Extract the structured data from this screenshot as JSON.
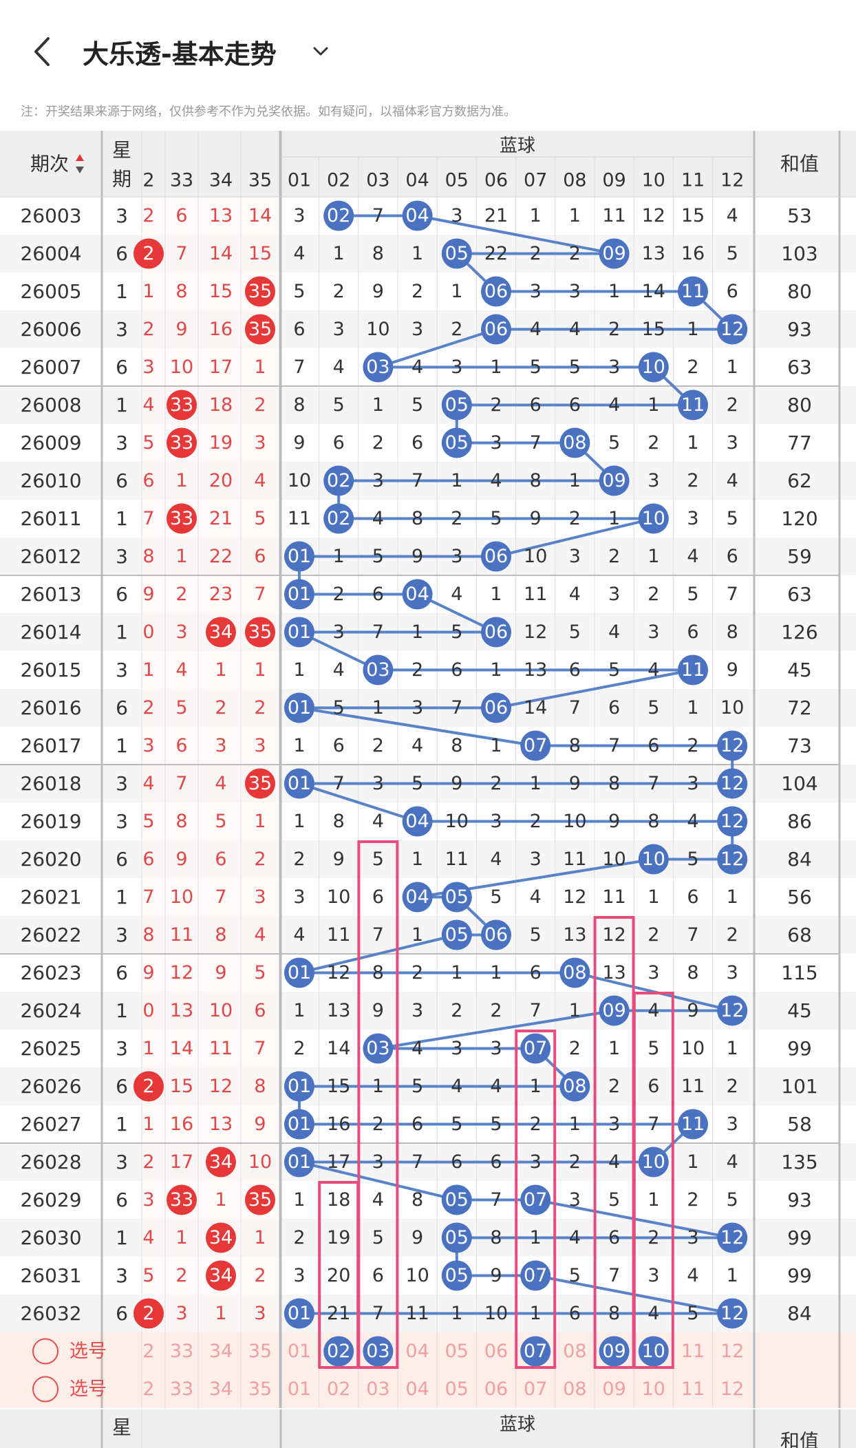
{
  "header": {
    "title": "大乐透-基本走势",
    "note": "注：开奖结果来源于网络，仅供参考不作为兑奖依据。如有疑问，以福体彩官方数据为准。"
  },
  "table": {
    "issue_header": "期次",
    "week_header_top": "星",
    "week_header_bottom": "期",
    "blue_header": "蓝球",
    "sum_header": "和值",
    "front_cols": [
      "2",
      "33",
      "34",
      "35"
    ],
    "blue_cols": [
      "01",
      "02",
      "03",
      "04",
      "05",
      "06",
      "07",
      "08",
      "09",
      "10",
      "11",
      "12"
    ],
    "rows": [
      {
        "issue": "26003",
        "week": "3",
        "front": [
          "2",
          "6",
          "13",
          "14"
        ],
        "blue": [
          "3",
          "02",
          "7",
          "04",
          "3",
          "21",
          "1",
          "1",
          "11",
          "12",
          "15",
          "4"
        ],
        "sum": "53"
      },
      {
        "issue": "26004",
        "week": "6",
        "front": [
          "2",
          "7",
          "14",
          "15"
        ],
        "blue": [
          "4",
          "1",
          "8",
          "1",
          "05",
          "22",
          "2",
          "2",
          "09",
          "13",
          "16",
          "5"
        ],
        "sum": "103"
      },
      {
        "issue": "26005",
        "week": "1",
        "front": [
          "1",
          "8",
          "15",
          "35"
        ],
        "blue": [
          "5",
          "2",
          "9",
          "2",
          "1",
          "06",
          "3",
          "3",
          "1",
          "14",
          "11",
          "6"
        ],
        "sum": "80"
      },
      {
        "issue": "26006",
        "week": "3",
        "front": [
          "2",
          "9",
          "16",
          "35"
        ],
        "blue": [
          "6",
          "3",
          "10",
          "3",
          "2",
          "06",
          "4",
          "4",
          "2",
          "15",
          "1",
          "12"
        ],
        "sum": "93"
      },
      {
        "issue": "26007",
        "week": "6",
        "front": [
          "3",
          "10",
          "17",
          "1"
        ],
        "blue": [
          "7",
          "4",
          "03",
          "4",
          "3",
          "1",
          "5",
          "5",
          "3",
          "10",
          "2",
          "1"
        ],
        "sum": "63"
      },
      {
        "issue": "26008",
        "week": "1",
        "front": [
          "4",
          "33",
          "18",
          "2"
        ],
        "blue": [
          "8",
          "5",
          "1",
          "5",
          "05",
          "2",
          "6",
          "6",
          "4",
          "1",
          "11",
          "2"
        ],
        "sum": "80"
      },
      {
        "issue": "26009",
        "week": "3",
        "front": [
          "5",
          "33",
          "19",
          "3"
        ],
        "blue": [
          "9",
          "6",
          "2",
          "6",
          "05",
          "3",
          "7",
          "08",
          "5",
          "2",
          "1",
          "3"
        ],
        "sum": "77"
      },
      {
        "issue": "26010",
        "week": "6",
        "front": [
          "6",
          "1",
          "20",
          "4"
        ],
        "blue": [
          "10",
          "02",
          "3",
          "7",
          "1",
          "4",
          "8",
          "1",
          "09",
          "3",
          "2",
          "4"
        ],
        "sum": "62"
      },
      {
        "issue": "26011",
        "week": "1",
        "front": [
          "7",
          "33",
          "21",
          "5"
        ],
        "blue": [
          "11",
          "02",
          "4",
          "8",
          "2",
          "5",
          "9",
          "2",
          "1",
          "10",
          "3",
          "5"
        ],
        "sum": "120"
      },
      {
        "issue": "26012",
        "week": "3",
        "front": [
          "8",
          "1",
          "22",
          "6"
        ],
        "blue": [
          "01",
          "1",
          "5",
          "9",
          "3",
          "06",
          "10",
          "3",
          "2",
          "1",
          "4",
          "6"
        ],
        "sum": "59"
      },
      {
        "issue": "26013",
        "week": "6",
        "front": [
          "9",
          "2",
          "23",
          "7"
        ],
        "blue": [
          "01",
          "2",
          "6",
          "04",
          "4",
          "1",
          "11",
          "4",
          "3",
          "2",
          "5",
          "7"
        ],
        "sum": "63"
      },
      {
        "issue": "26014",
        "week": "1",
        "front": [
          "0",
          "3",
          "34",
          "35"
        ],
        "blue": [
          "01",
          "3",
          "7",
          "1",
          "5",
          "06",
          "12",
          "5",
          "4",
          "3",
          "6",
          "8"
        ],
        "sum": "126"
      },
      {
        "issue": "26015",
        "week": "3",
        "front": [
          "1",
          "4",
          "1",
          "1"
        ],
        "blue": [
          "1",
          "4",
          "03",
          "2",
          "6",
          "1",
          "13",
          "6",
          "5",
          "4",
          "11",
          "9"
        ],
        "sum": "45"
      },
      {
        "issue": "26016",
        "week": "6",
        "front": [
          "2",
          "5",
          "2",
          "2"
        ],
        "blue": [
          "01",
          "5",
          "1",
          "3",
          "7",
          "06",
          "14",
          "7",
          "6",
          "5",
          "1",
          "10"
        ],
        "sum": "72"
      },
      {
        "issue": "26017",
        "week": "1",
        "front": [
          "3",
          "6",
          "3",
          "3"
        ],
        "blue": [
          "1",
          "6",
          "2",
          "4",
          "8",
          "1",
          "07",
          "8",
          "7",
          "6",
          "2",
          "12"
        ],
        "sum": "73"
      },
      {
        "issue": "26018",
        "week": "3",
        "front": [
          "4",
          "7",
          "4",
          "35"
        ],
        "blue": [
          "01",
          "7",
          "3",
          "5",
          "9",
          "2",
          "1",
          "9",
          "8",
          "7",
          "3",
          "12"
        ],
        "sum": "104"
      },
      {
        "issue": "26019",
        "week": "3",
        "front": [
          "5",
          "8",
          "5",
          "1"
        ],
        "blue": [
          "1",
          "8",
          "4",
          "04",
          "10",
          "3",
          "2",
          "10",
          "9",
          "8",
          "4",
          "12"
        ],
        "sum": "86"
      },
      {
        "issue": "26020",
        "week": "6",
        "front": [
          "6",
          "9",
          "6",
          "2"
        ],
        "blue": [
          "2",
          "9",
          "5",
          "1",
          "11",
          "4",
          "3",
          "11",
          "10",
          "10",
          "5",
          "12"
        ],
        "sum": "84"
      },
      {
        "issue": "26021",
        "week": "1",
        "front": [
          "7",
          "10",
          "7",
          "3"
        ],
        "blue": [
          "3",
          "10",
          "6",
          "04",
          "05",
          "5",
          "4",
          "12",
          "11",
          "1",
          "6",
          "1"
        ],
        "sum": "56"
      },
      {
        "issue": "26022",
        "week": "3",
        "front": [
          "8",
          "11",
          "8",
          "4"
        ],
        "blue": [
          "4",
          "11",
          "7",
          "1",
          "05",
          "06",
          "5",
          "13",
          "12",
          "2",
          "7",
          "2"
        ],
        "sum": "68"
      },
      {
        "issue": "26023",
        "week": "6",
        "front": [
          "9",
          "12",
          "9",
          "5"
        ],
        "blue": [
          "01",
          "12",
          "8",
          "2",
          "1",
          "1",
          "6",
          "08",
          "13",
          "3",
          "8",
          "3"
        ],
        "sum": "115"
      },
      {
        "issue": "26024",
        "week": "1",
        "front": [
          "0",
          "13",
          "10",
          "6"
        ],
        "blue": [
          "1",
          "13",
          "9",
          "3",
          "2",
          "2",
          "7",
          "1",
          "09",
          "4",
          "9",
          "12"
        ],
        "sum": "45"
      },
      {
        "issue": "26025",
        "week": "3",
        "front": [
          "1",
          "14",
          "11",
          "7"
        ],
        "blue": [
          "2",
          "14",
          "03",
          "4",
          "3",
          "3",
          "07",
          "2",
          "1",
          "5",
          "10",
          "1"
        ],
        "sum": "99"
      },
      {
        "issue": "26026",
        "week": "6",
        "front": [
          "2",
          "15",
          "12",
          "8"
        ],
        "blue": [
          "01",
          "15",
          "1",
          "5",
          "4",
          "4",
          "1",
          "08",
          "2",
          "6",
          "11",
          "2"
        ],
        "sum": "101"
      },
      {
        "issue": "26027",
        "week": "1",
        "front": [
          "1",
          "16",
          "13",
          "9"
        ],
        "blue": [
          "01",
          "16",
          "2",
          "6",
          "5",
          "5",
          "2",
          "1",
          "3",
          "7",
          "11",
          "3"
        ],
        "sum": "58"
      },
      {
        "issue": "26028",
        "week": "3",
        "front": [
          "2",
          "17",
          "34",
          "10"
        ],
        "blue": [
          "01",
          "17",
          "3",
          "7",
          "6",
          "6",
          "3",
          "2",
          "4",
          "10",
          "1",
          "4"
        ],
        "sum": "135"
      },
      {
        "issue": "26029",
        "week": "6",
        "front": [
          "3",
          "33",
          "1",
          "35"
        ],
        "blue": [
          "1",
          "18",
          "4",
          "8",
          "05",
          "7",
          "07",
          "3",
          "5",
          "1",
          "2",
          "5"
        ],
        "sum": "93"
      },
      {
        "issue": "26030",
        "week": "1",
        "front": [
          "4",
          "1",
          "34",
          "1"
        ],
        "blue": [
          "2",
          "19",
          "5",
          "9",
          "05",
          "8",
          "1",
          "4",
          "6",
          "2",
          "3",
          "12"
        ],
        "sum": "99"
      },
      {
        "issue": "26031",
        "week": "3",
        "front": [
          "5",
          "2",
          "34",
          "2"
        ],
        "blue": [
          "3",
          "20",
          "6",
          "10",
          "05",
          "9",
          "07",
          "5",
          "7",
          "3",
          "4",
          "1"
        ],
        "sum": "99"
      },
      {
        "issue": "26032",
        "week": "6",
        "front": [
          "2",
          "3",
          "1",
          "3"
        ],
        "blue": [
          "01",
          "21",
          "7",
          "11",
          "1",
          "10",
          "1",
          "6",
          "8",
          "4",
          "5",
          "12"
        ],
        "sum": "84"
      }
    ],
    "front_hits": [
      [],
      [
        0
      ],
      [
        3
      ],
      [
        3
      ],
      [],
      [
        1
      ],
      [
        1
      ],
      [],
      [
        1
      ],
      [],
      [],
      [
        2,
        3
      ],
      [],
      [],
      [],
      [
        3
      ],
      [],
      [],
      [],
      [],
      [],
      [],
      [],
      [
        0
      ],
      [],
      [
        2
      ],
      [
        1,
        3
      ],
      [
        2
      ],
      [
        2
      ],
      [
        0
      ]
    ],
    "blue_hits": [
      [
        1,
        3
      ],
      [
        4,
        8
      ],
      [
        5,
        10
      ],
      [
        5,
        11
      ],
      [
        2,
        9
      ],
      [
        4,
        10
      ],
      [
        4,
        7
      ],
      [
        1,
        8
      ],
      [
        1,
        9
      ],
      [
        0,
        5
      ],
      [
        0,
        3
      ],
      [
        0,
        5
      ],
      [
        2,
        10
      ],
      [
        0,
        5
      ],
      [
        6,
        11
      ],
      [
        0,
        11
      ],
      [
        3,
        11
      ],
      [
        9,
        11
      ],
      [
        3,
        4
      ],
      [
        4,
        5
      ],
      [
        0,
        7
      ],
      [
        8,
        11
      ],
      [
        2,
        6
      ],
      [
        0,
        7
      ],
      [
        0,
        10
      ],
      [
        0,
        9
      ],
      [
        4,
        6
      ],
      [
        4,
        11
      ],
      [
        4,
        6
      ],
      [
        0,
        11
      ]
    ],
    "select_label": "选号",
    "select_front": [
      "2",
      "33",
      "34",
      "35"
    ],
    "select_blue": [
      "01",
      "02",
      "03",
      "04",
      "05",
      "06",
      "07",
      "08",
      "09",
      "10",
      "11",
      "12"
    ],
    "select_picked": [
      1,
      2,
      6,
      8,
      9
    ],
    "highlight_cols": [
      1,
      2,
      6,
      8,
      9
    ]
  },
  "colors": {
    "red_ball": "#E63838",
    "blue_ball": "#4A72C0",
    "trend_line": "#5A82C8",
    "highlight_box": "#E84C7C",
    "front_text": "#E04848",
    "select_bg": "#FDEEEA"
  }
}
